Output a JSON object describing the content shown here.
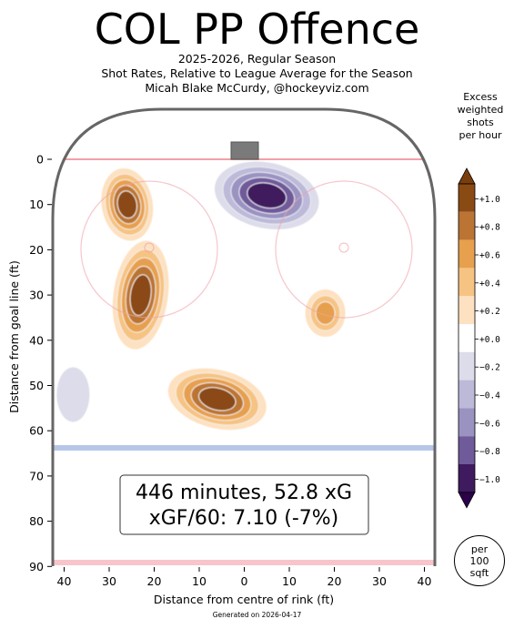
{
  "header": {
    "title": "COL PP Offence",
    "subtitle_lines": [
      "2025-2026, Regular Season",
      "Shot Rates, Relative to League Average for the Season",
      "Micah Blake McCurdy, @hockeyviz.com"
    ]
  },
  "colorbar": {
    "title_lines": [
      "Excess",
      "weighted",
      "shots",
      "per hour"
    ],
    "levels": [
      "+1.0",
      "+0.8",
      "+0.6",
      "+0.4",
      "+0.2",
      "+0.0",
      "−0.2",
      "−0.4",
      "−0.6",
      "−0.8",
      "−1.0"
    ],
    "colors": [
      "#8a4a13",
      "#bb7433",
      "#e6a04e",
      "#f6c382",
      "#fde1c0",
      "#ffffff",
      "#dcdcea",
      "#bcbad8",
      "#9a93c2",
      "#6f5a9a",
      "#3f1a5e"
    ],
    "over_color": "#7a3e0c",
    "under_color": "#2d004b"
  },
  "stats_box": {
    "line1": "446 minutes, 52.8 xG",
    "line2": "xGF/60: 7.10 (-7%)"
  },
  "scale_note_lines": [
    "per",
    "100",
    "sqft"
  ],
  "footer": "Generated on 2026-04-17",
  "chart_data": {
    "type": "heatmap",
    "title": "COL PP Offence",
    "xlabel": "Distance from centre of rink (ft)",
    "ylabel": "Distance from goal line (ft)",
    "x_ticks": [
      "40",
      "30",
      "20",
      "10",
      "0",
      "10",
      "20",
      "30",
      "40"
    ],
    "x_tick_values": [
      -40,
      -30,
      -20,
      -10,
      0,
      10,
      20,
      30,
      40
    ],
    "y_ticks": [
      "0",
      "10",
      "20",
      "30",
      "40",
      "50",
      "60",
      "70",
      "80",
      "90"
    ],
    "y_tick_values": [
      0,
      10,
      20,
      30,
      40,
      50,
      60,
      70,
      80,
      90
    ],
    "xlim": [
      -42.5,
      42.5
    ],
    "ylim": [
      90,
      -11
    ],
    "colorbar_range": [
      -1.0,
      1.0
    ],
    "hotspots": [
      {
        "x": -23,
        "y": 30,
        "value": 1.0
      },
      {
        "x": -26,
        "y": 10,
        "value": 1.0
      },
      {
        "x": -6,
        "y": 53,
        "value": 1.0
      },
      {
        "x": 18,
        "y": 34,
        "value": 0.6
      },
      {
        "x": 5,
        "y": 8,
        "value": -1.0
      },
      {
        "x": -38,
        "y": 52,
        "value": -0.2
      }
    ]
  }
}
